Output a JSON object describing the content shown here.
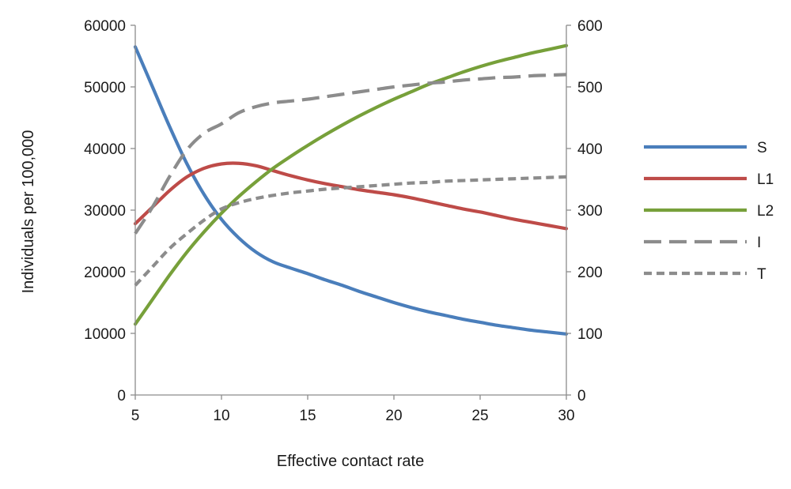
{
  "chart_data": {
    "type": "line",
    "title": "",
    "xlabel": "Effective contact rate",
    "ylabel_left": "Individuals  per 100,000",
    "ylabel_right": "",
    "xlim": [
      5,
      30
    ],
    "ylim_left": [
      0,
      60000
    ],
    "ylim_right": [
      0,
      600
    ],
    "x_ticks": [
      "5",
      "10",
      "15",
      "20",
      "25",
      "30"
    ],
    "y_ticks_left": [
      "0",
      "10000",
      "20000",
      "30000",
      "40000",
      "50000",
      "60000"
    ],
    "y_ticks_right": [
      "0",
      "100",
      "200",
      "300",
      "400",
      "500",
      "600"
    ],
    "grid": false,
    "legend_position": "right",
    "series": [
      {
        "name": "S",
        "axis": "left",
        "color": "#4a7ebb",
        "dash": "solid",
        "x": [
          5,
          6,
          7,
          8,
          9,
          10,
          11,
          12,
          13,
          14,
          15,
          16,
          17,
          18,
          19,
          20,
          21,
          22,
          23,
          24,
          25,
          26,
          27,
          28,
          29,
          30
        ],
        "y": [
          56500,
          50000,
          43500,
          37500,
          32500,
          28500,
          25500,
          23200,
          21600,
          20600,
          19700,
          18700,
          17800,
          16800,
          15900,
          15000,
          14200,
          13500,
          12900,
          12300,
          11800,
          11300,
          10900,
          10500,
          10200,
          9900
        ]
      },
      {
        "name": "L1",
        "axis": "left",
        "color": "#be4b48",
        "dash": "solid",
        "x": [
          5,
          6,
          7,
          8,
          9,
          10,
          11,
          12,
          13,
          14,
          15,
          16,
          17,
          18,
          19,
          20,
          21,
          22,
          23,
          24,
          25,
          26,
          27,
          28,
          29,
          30
        ],
        "y": [
          27800,
          30500,
          33200,
          35400,
          36800,
          37500,
          37600,
          37200,
          36400,
          35600,
          34900,
          34300,
          33800,
          33300,
          32900,
          32500,
          32000,
          31400,
          30800,
          30200,
          29700,
          29100,
          28500,
          28000,
          27500,
          27000
        ]
      },
      {
        "name": "L2",
        "axis": "left",
        "color": "#77a03a",
        "dash": "solid",
        "x": [
          5,
          6,
          7,
          8,
          9,
          10,
          11,
          12,
          13,
          14,
          15,
          16,
          17,
          18,
          19,
          20,
          21,
          22,
          23,
          24,
          25,
          26,
          27,
          28,
          29,
          30
        ],
        "y": [
          11500,
          15500,
          19500,
          23200,
          26500,
          29500,
          32200,
          34600,
          36800,
          38700,
          40500,
          42200,
          43800,
          45300,
          46700,
          48000,
          49200,
          50400,
          51400,
          52400,
          53300,
          54100,
          54800,
          55500,
          56100,
          56700
        ]
      },
      {
        "name": "I",
        "axis": "right",
        "color": "#8c8c8c",
        "dash": "long",
        "x": [
          5,
          6,
          7,
          8,
          9,
          10,
          11,
          12,
          13,
          14,
          15,
          16,
          17,
          18,
          19,
          20,
          21,
          22,
          23,
          24,
          25,
          26,
          27,
          28,
          29,
          30
        ],
        "y": [
          262,
          305,
          355,
          398,
          425,
          440,
          458,
          468,
          474,
          477,
          480,
          484,
          488,
          492,
          496,
          500,
          503,
          506,
          508,
          511,
          513,
          515,
          516,
          518,
          519,
          520
        ]
      },
      {
        "name": "T",
        "axis": "right",
        "color": "#8c8c8c",
        "dash": "short",
        "x": [
          5,
          6,
          7,
          8,
          9,
          10,
          11,
          12,
          13,
          14,
          15,
          16,
          17,
          18,
          19,
          20,
          21,
          22,
          23,
          24,
          25,
          26,
          27,
          28,
          29,
          30
        ],
        "y": [
          178,
          208,
          238,
          262,
          284,
          302,
          312,
          319,
          324,
          328,
          331,
          334,
          336,
          338,
          340,
          342,
          344,
          345,
          347,
          348,
          349,
          350,
          351,
          352,
          353,
          354
        ]
      }
    ]
  }
}
